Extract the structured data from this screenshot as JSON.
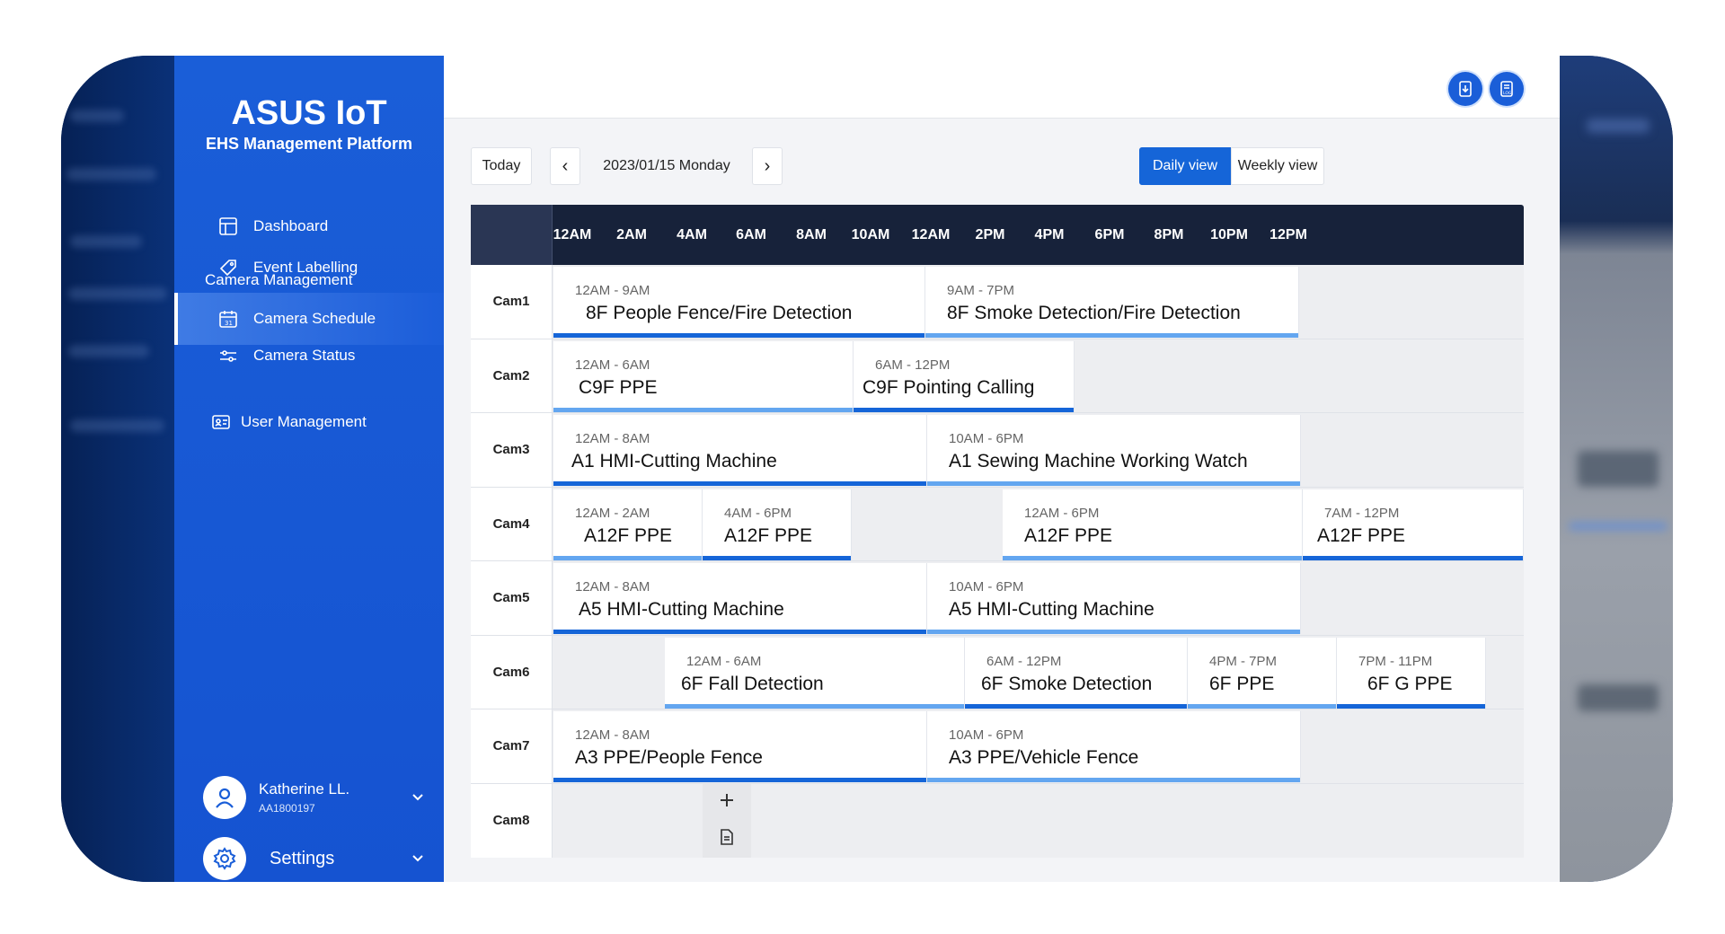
{
  "app": {
    "brand": "ASUS IoT",
    "platform": "EHS Management Platform",
    "accent_color": "#1565d8",
    "sidebar_color": "#1a5ed8",
    "header_color": "#17223a"
  },
  "sidebar": {
    "items": [
      {
        "label": "Dashboard",
        "icon": "layout-icon"
      },
      {
        "label": "Event Labelling",
        "icon": "tag-icon"
      }
    ],
    "section_title": "Camera Management",
    "camera_items": [
      {
        "label": "Camera Schedule",
        "icon": "calendar-icon",
        "active": true
      },
      {
        "label": "Camera Status",
        "icon": "sliders-icon",
        "active": false
      }
    ],
    "user_management": {
      "label": "User Management",
      "icon": "id-card-icon"
    },
    "user": {
      "name": "Katherine LL.",
      "id": "AA1800197"
    },
    "settings_label": "Settings"
  },
  "toolbar": {
    "today_label": "Today",
    "prev_label": "‹",
    "next_label": "›",
    "date": "2023/01/15 Monday",
    "daily_label": "Daily view",
    "weekly_label": "Weekly view",
    "active_view": "Daily view"
  },
  "schedule": {
    "hours": [
      "12AM",
      "2AM",
      "4AM",
      "6AM",
      "8AM",
      "10AM",
      "12AM",
      "2PM",
      "4PM",
      "6PM",
      "8PM",
      "10PM",
      "12PM"
    ],
    "cameras": [
      {
        "name": "Cam1",
        "events": [
          {
            "time": "12AM - 9AM",
            "title": "8F People Fence/Fire Detection",
            "bar": "dark"
          },
          {
            "time": "9AM - 7PM",
            "title": "8F Smoke Detection/Fire Detection",
            "bar": "light"
          }
        ]
      },
      {
        "name": "Cam2",
        "events": [
          {
            "time": "12AM - 6AM",
            "title": "C9F PPE",
            "bar": "light"
          },
          {
            "time": "6AM - 12PM",
            "title": "C9F Pointing Calling",
            "bar": "dark"
          }
        ]
      },
      {
        "name": "Cam3",
        "events": [
          {
            "time": "12AM - 8AM",
            "title": "A1 HMI-Cutting Machine",
            "bar": "dark"
          },
          {
            "time": "10AM - 6PM",
            "title": "A1 Sewing Machine Working Watch",
            "bar": "light"
          }
        ]
      },
      {
        "name": "Cam4",
        "events": [
          {
            "time": "12AM - 2AM",
            "title": "A12F PPE",
            "bar": "light"
          },
          {
            "time": "4AM - 6PM",
            "title": "A12F PPE",
            "bar": "dark"
          },
          {
            "time": "12AM - 6PM",
            "title": "A12F PPE",
            "bar": "light"
          },
          {
            "time": "7AM - 12PM",
            "title": "A12F PPE",
            "bar": "dark"
          }
        ]
      },
      {
        "name": "Cam5",
        "events": [
          {
            "time": "12AM - 8AM",
            "title": "A5 HMI-Cutting Machine",
            "bar": "dark"
          },
          {
            "time": "10AM - 6PM",
            "title": "A5 HMI-Cutting Machine",
            "bar": "light"
          }
        ]
      },
      {
        "name": "Cam6",
        "events": [
          {
            "time": "12AM - 6AM",
            "title": "6F Fall Detection",
            "bar": "light"
          },
          {
            "time": "6AM - 12PM",
            "title": "6F Smoke Detection",
            "bar": "dark"
          },
          {
            "time": "4PM - 7PM",
            "title": "6F PPE",
            "bar": "light"
          },
          {
            "time": "7PM - 11PM",
            "title": "6F G PPE",
            "bar": "dark"
          }
        ]
      },
      {
        "name": "Cam7",
        "events": [
          {
            "time": "12AM - 8AM",
            "title": "A3 PPE/People Fence",
            "bar": "dark"
          },
          {
            "time": "10AM - 6PM",
            "title": "A3 PPE/Vehicle Fence",
            "bar": "light"
          }
        ]
      },
      {
        "name": "Cam8",
        "events": []
      }
    ]
  }
}
